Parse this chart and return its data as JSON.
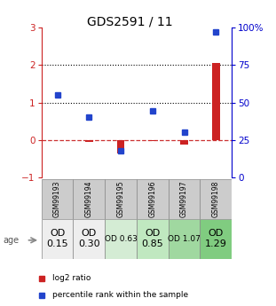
{
  "title": "GDS2591 / 11",
  "samples": [
    "GSM99193",
    "GSM99194",
    "GSM99195",
    "GSM99196",
    "GSM99197",
    "GSM99198"
  ],
  "age_labels": [
    "OD\n0.15",
    "OD\n0.30",
    "OD 0.63",
    "OD\n0.85",
    "OD 1.07",
    "OD\n1.29"
  ],
  "age_bg_colors": [
    "#eeeeee",
    "#eeeeee",
    "#d4ecd4",
    "#c0e8c0",
    "#a0d8a0",
    "#80cc80"
  ],
  "age_fontsize": [
    8,
    8,
    6.5,
    8,
    6.5,
    8
  ],
  "log2_ratio": [
    0.0,
    -0.05,
    -0.35,
    -0.02,
    -0.12,
    2.05
  ],
  "percentile_rank": [
    1.2,
    0.62,
    -0.28,
    0.77,
    0.22,
    2.88
  ],
  "ylim_left": [
    -1,
    3
  ],
  "bar_color_red": "#cc2222",
  "bar_color_blue": "#2244cc",
  "dashed_line_color": "#cc3333",
  "right_axis_color": "#0000cc",
  "left_axis_color": "#cc2222",
  "right_ticks": [
    0,
    25,
    50,
    75,
    100
  ],
  "right_tick_labels": [
    "0",
    "25",
    "50",
    "75",
    "100%"
  ],
  "left_ticks": [
    -1,
    0,
    1,
    2,
    3
  ],
  "sample_bg_color": "#cccccc",
  "legend_red_label": "log2 ratio",
  "legend_blue_label": "percentile rank within the sample",
  "title_fontsize": 10
}
